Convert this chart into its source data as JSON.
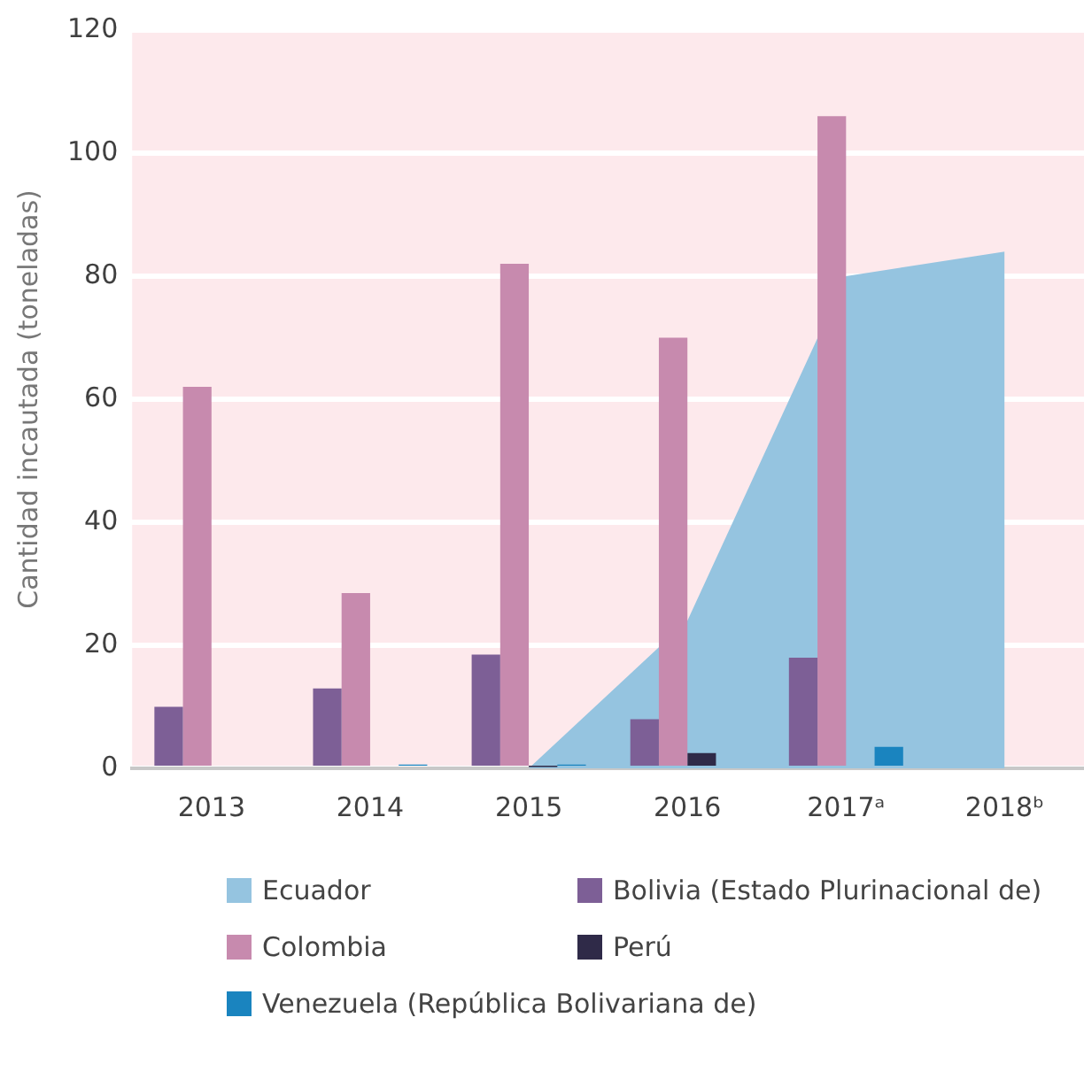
{
  "chart_data": {
    "type": "bar",
    "ylabel": "Cantidad incautada (toneladas)",
    "categories": [
      "2013",
      "2014",
      "2015",
      "2016",
      "2017ᵃ",
      "2018ᵇ"
    ],
    "series": [
      {
        "name": "Ecuador",
        "type": "area",
        "color": "#95c4e0",
        "values": [
          null,
          null,
          0,
          24,
          80,
          84
        ]
      },
      {
        "name": "Bolivia (Estado Plurinacional de)",
        "color": "#7d5f96",
        "values": [
          10,
          13,
          18.5,
          8,
          18,
          null
        ]
      },
      {
        "name": "Colombia",
        "color": "#c78aae",
        "values": [
          62,
          28.5,
          82,
          70,
          106,
          null
        ]
      },
      {
        "name": "Perú",
        "color": "#2f2a48",
        "values": [
          null,
          null,
          0.2,
          2.5,
          null,
          null
        ]
      },
      {
        "name": "Venezuela (República Bolivariana de)",
        "color": "#1a84bf",
        "values": [
          null,
          0.6,
          0.6,
          null,
          3.5,
          null
        ]
      }
    ],
    "ylim": [
      0,
      120
    ],
    "yticks": [
      0,
      20,
      40,
      60,
      80,
      100,
      120
    ],
    "grid": "y",
    "legend": "bottom"
  }
}
